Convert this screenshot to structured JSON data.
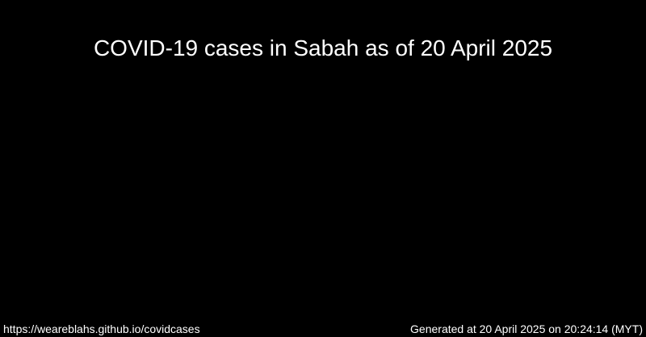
{
  "header": {
    "title": "COVID-19 cases in Sabah as of 20 April 2025"
  },
  "footer": {
    "url": "https://weareblahs.github.io/covidcases",
    "generated": "Generated at 20 April 2025 on 20:24:14 (MYT)"
  },
  "colors": {
    "background": "#000000",
    "text": "#ffffff"
  }
}
